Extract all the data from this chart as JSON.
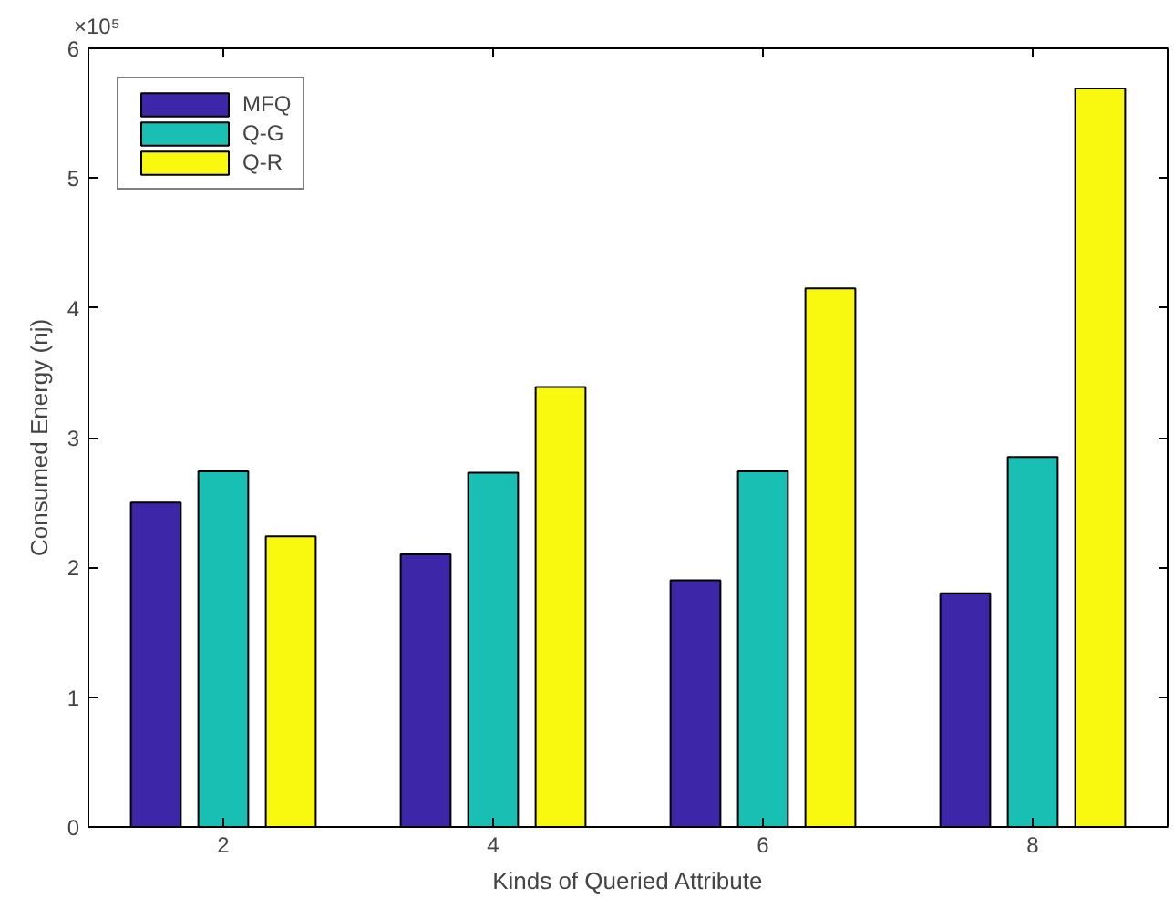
{
  "chart_data": {
    "type": "bar",
    "xlabel": "Kinds of Queried Attribute",
    "ylabel": "Consumed Energy (nj)",
    "x": [
      2,
      4,
      6,
      8
    ],
    "series": [
      {
        "name": "MFQ",
        "color": "#3e26a8",
        "values": [
          2.5,
          2.1,
          1.9,
          1.8
        ]
      },
      {
        "name": "Q-G",
        "color": "#1abfb3",
        "values": [
          2.74,
          2.73,
          2.74,
          2.85
        ]
      },
      {
        "name": "Q-R",
        "color": "#f9f90f",
        "values": [
          2.24,
          3.39,
          4.15,
          5.69
        ]
      }
    ],
    "xlim": [
      1,
      9
    ],
    "xticks": [
      2,
      4,
      6,
      8
    ],
    "ylim": [
      0,
      6
    ],
    "yticks": [
      0,
      1,
      2,
      3,
      4,
      5,
      6
    ],
    "annotations": [
      "×10⁵"
    ],
    "legend": "top left",
    "grid": false
  }
}
